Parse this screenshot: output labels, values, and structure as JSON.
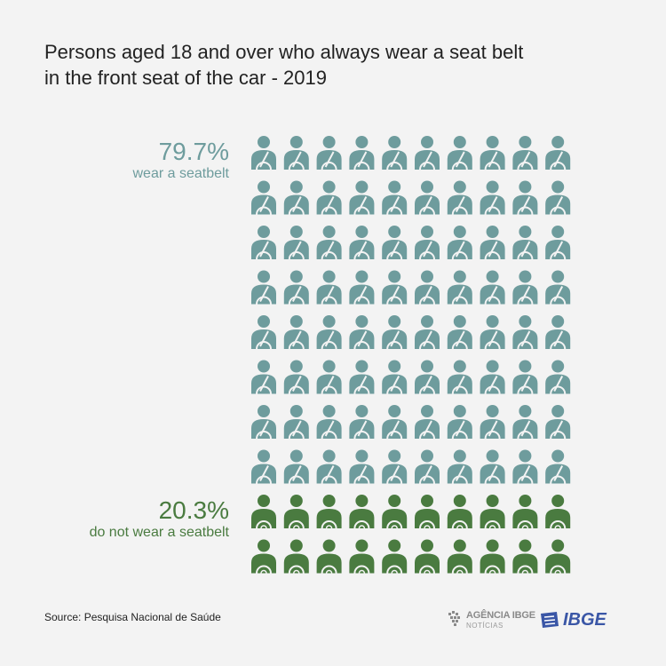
{
  "title": "Persons aged 18 and over who always wear a seat belt in the front seat of the car - 2019",
  "labels": {
    "wear_pct": "79.7%",
    "wear_desc": "wear a seatbelt",
    "notwear_pct": "20.3%",
    "notwear_desc": "do not wear a seatbelt"
  },
  "source": "Source: Pesquisa Nacional de Saúde",
  "logos": {
    "agencia": "AGÊNCIA IBGE",
    "agencia_sub": "NOTÍCIAS",
    "ibge": "IBGE"
  },
  "colors": {
    "wear": "#6e9c9d",
    "notwear": "#4a7b40",
    "text": "#222222",
    "background": "#f3f3f3",
    "ibge_blue": "#3a56a6"
  },
  "chart_data": {
    "type": "waffle",
    "title": "Persons aged 18 and over who always wear a seat belt in the front seat of the car - 2019",
    "total_icons": 100,
    "rows": 10,
    "columns": 10,
    "series": [
      {
        "name": "wear a seatbelt",
        "value": 79.7,
        "icons": 80,
        "color": "#6e9c9d",
        "icon": "driver-seatbelt-icon"
      },
      {
        "name": "do not wear a seatbelt",
        "value": 20.3,
        "icons": 20,
        "color": "#4a7b40",
        "icon": "driver-no-seatbelt-icon"
      }
    ]
  }
}
